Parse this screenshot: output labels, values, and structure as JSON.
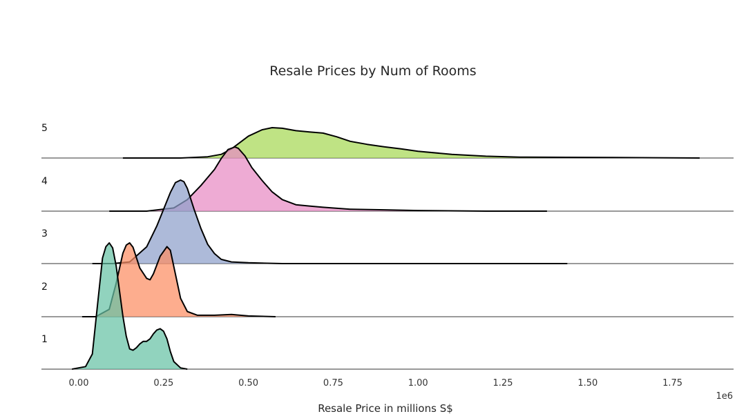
{
  "chart_data": {
    "type": "area",
    "subtype": "ridgeline (joy plot) of density curves",
    "title": "Resale Prices by Num of Rooms",
    "xlabel": "Resale Price in millions S$",
    "x_offset_text": "1e6",
    "xlim": [
      -110000,
      1930000
    ],
    "xticks": [
      0,
      250000,
      500000,
      750000,
      1000000,
      1250000,
      1500000,
      1750000
    ],
    "xtick_labels": [
      "0.00",
      "0.25",
      "0.50",
      "0.75",
      "1.00",
      "1.25",
      "1.50",
      "1.75"
    ],
    "rows_bottom_to_top": [
      "1",
      "2",
      "3",
      "4",
      "5"
    ],
    "density_max_scale": 1.0,
    "grid": false,
    "legend": "none",
    "series": [
      {
        "label": "1",
        "color": "#66c2a5",
        "x": [
          -20000,
          20000,
          40000,
          55000,
          70000,
          80000,
          90000,
          100000,
          110000,
          120000,
          130000,
          140000,
          150000,
          160000,
          170000,
          180000,
          190000,
          200000,
          210000,
          220000,
          230000,
          240000,
          250000,
          260000,
          270000,
          280000,
          300000,
          320000
        ],
        "density": [
          0.0,
          0.02,
          0.12,
          0.5,
          0.88,
          0.97,
          1.0,
          0.96,
          0.82,
          0.62,
          0.42,
          0.26,
          0.16,
          0.15,
          0.17,
          0.2,
          0.22,
          0.22,
          0.24,
          0.28,
          0.31,
          0.32,
          0.3,
          0.24,
          0.14,
          0.06,
          0.01,
          0.0
        ]
      },
      {
        "label": "2",
        "color": "#fc8d62",
        "x": [
          10000,
          50000,
          90000,
          110000,
          130000,
          140000,
          150000,
          160000,
          180000,
          200000,
          210000,
          220000,
          240000,
          260000,
          270000,
          280000,
          300000,
          320000,
          350000,
          400000,
          450000,
          500000,
          580000
        ],
        "density": [
          0.0,
          0.0,
          0.1,
          0.45,
          0.86,
          0.97,
          1.0,
          0.94,
          0.66,
          0.52,
          0.5,
          0.58,
          0.82,
          0.95,
          0.9,
          0.68,
          0.25,
          0.07,
          0.02,
          0.02,
          0.03,
          0.01,
          0.0
        ]
      },
      {
        "label": "3",
        "color": "#8da0cb",
        "x": [
          40000,
          100000,
          150000,
          200000,
          230000,
          250000,
          270000,
          285000,
          300000,
          310000,
          320000,
          340000,
          360000,
          380000,
          400000,
          420000,
          450000,
          500000,
          600000,
          800000,
          1000000,
          1200000,
          1440000
        ],
        "density": [
          0.0,
          0.0,
          0.02,
          0.2,
          0.45,
          0.65,
          0.85,
          0.97,
          1.0,
          0.98,
          0.9,
          0.65,
          0.42,
          0.23,
          0.12,
          0.05,
          0.02,
          0.01,
          0.0,
          0.0,
          0.0,
          0.0,
          0.0
        ]
      },
      {
        "label": "4",
        "color": "#e78ac3",
        "x": [
          90000,
          200000,
          280000,
          320000,
          360000,
          400000,
          420000,
          440000,
          460000,
          470000,
          490000,
          510000,
          540000,
          570000,
          600000,
          640000,
          680000,
          720000,
          800000,
          900000,
          1000000,
          1200000,
          1380000
        ],
        "density": [
          0.0,
          0.0,
          0.05,
          0.18,
          0.4,
          0.65,
          0.82,
          0.96,
          1.0,
          0.98,
          0.86,
          0.68,
          0.48,
          0.3,
          0.18,
          0.1,
          0.08,
          0.06,
          0.03,
          0.02,
          0.01,
          0.0,
          0.0
        ]
      },
      {
        "label": "5",
        "color": "#a6d854",
        "x": [
          130000,
          300000,
          380000,
          420000,
          450000,
          500000,
          540000,
          570000,
          600000,
          640000,
          680000,
          720000,
          760000,
          800000,
          850000,
          900000,
          950000,
          1000000,
          1100000,
          1200000,
          1300000,
          1500000,
          1700000,
          1830000
        ],
        "density": [
          0.0,
          0.0,
          0.04,
          0.12,
          0.3,
          0.72,
          0.93,
          1.0,
          0.98,
          0.9,
          0.86,
          0.82,
          0.7,
          0.55,
          0.45,
          0.37,
          0.3,
          0.22,
          0.12,
          0.06,
          0.03,
          0.02,
          0.01,
          0.0
        ]
      }
    ]
  }
}
